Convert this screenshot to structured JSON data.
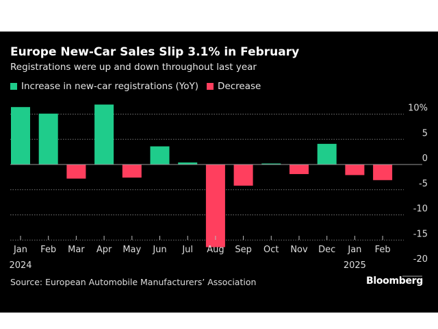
{
  "chart_data": {
    "type": "bar",
    "title": "Europe New-Car Sales Slip 3.1% in February",
    "subtitle": "Registrations were up and down throughout last year",
    "categories": [
      "Jan",
      "Feb",
      "Mar",
      "Apr",
      "May",
      "Jun",
      "Jul",
      "Aug",
      "Sep",
      "Oct",
      "Nov",
      "Dec",
      "Jan",
      "Feb"
    ],
    "year_labels": {
      "0": "2024",
      "12": "2025"
    },
    "values": [
      11.4,
      10.1,
      -2.8,
      11.9,
      -2.6,
      3.6,
      0.4,
      -16.4,
      -4.2,
      0.2,
      -1.9,
      4.1,
      -2.1,
      -3.1
    ],
    "legend": [
      {
        "label": "Increase in new-car registrations (YoY)",
        "color": "#1fcc8b"
      },
      {
        "label": "Decrease",
        "color": "#ff3f5e"
      }
    ],
    "legend_position": "top-left",
    "ylim": [
      -20,
      10
    ],
    "yticks": [
      10,
      5,
      0,
      -5,
      -10,
      -15,
      -20
    ],
    "ytick_labels": [
      "10%",
      "5",
      "0",
      "-5",
      "-10",
      "-15",
      "-20"
    ],
    "grid": true,
    "xlabel": "",
    "ylabel": "",
    "source": "Source: European Automobile Manufacturers’ Association",
    "logo": "Bloomberg"
  }
}
